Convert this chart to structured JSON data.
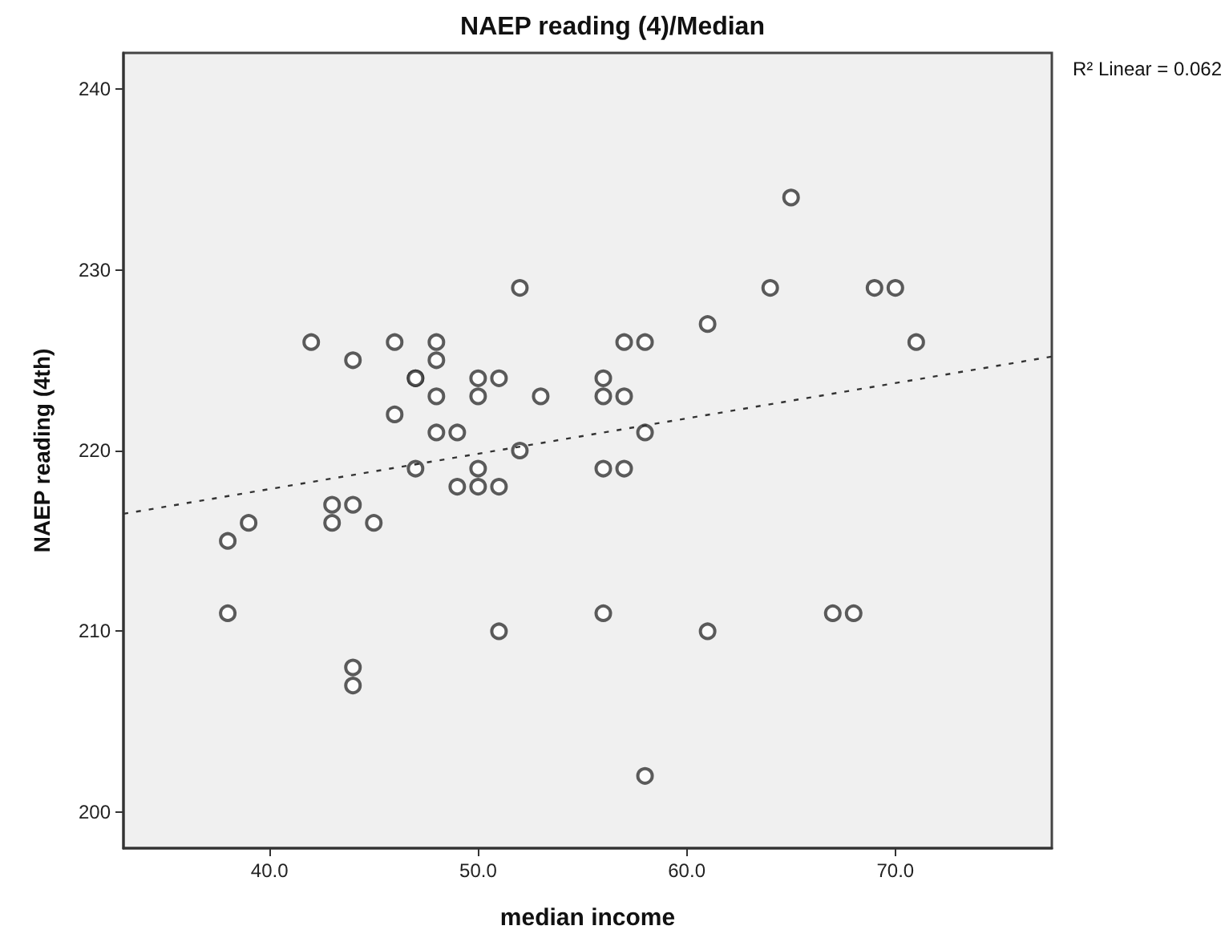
{
  "chart_data": {
    "type": "scatter",
    "title": "NAEP reading (4)/Median",
    "xlabel": "median income",
    "ylabel": "NAEP reading (4th)",
    "annotations": [
      "R² Linear = 0.062"
    ],
    "xlim": [
      33,
      77.5
    ],
    "xticks": [
      {
        "value": 40,
        "label": "40.0"
      },
      {
        "value": 50,
        "label": "50.0"
      },
      {
        "value": 60,
        "label": "60.0"
      },
      {
        "value": 70,
        "label": "70.0"
      }
    ],
    "ylim": [
      198,
      242
    ],
    "yticks": [
      200,
      210,
      220,
      230,
      240
    ],
    "marker": "circle",
    "series": [
      {
        "color": "#333333",
        "x": [
          38,
          38,
          39,
          42,
          43,
          43,
          44,
          44,
          44,
          44,
          45,
          46,
          46,
          47,
          47,
          47,
          48,
          48,
          48,
          48,
          49,
          49,
          50,
          50,
          50,
          50,
          51,
          51,
          51,
          52,
          52,
          53,
          56,
          56,
          56,
          56,
          57,
          57,
          57,
          58,
          58,
          58,
          61,
          61,
          64,
          65,
          67,
          68,
          69,
          70,
          71
        ],
        "values": [
          215,
          211,
          216,
          226,
          217,
          216,
          225,
          217,
          208,
          207,
          216,
          226,
          222,
          224,
          224,
          219,
          226,
          225,
          223,
          221,
          221,
          218,
          224,
          223,
          219,
          218,
          224,
          218,
          210,
          229,
          220,
          223,
          224,
          223,
          219,
          211,
          226,
          223,
          219,
          226,
          221,
          202,
          227,
          210,
          229,
          234,
          211,
          211,
          229,
          229,
          226
        ]
      },
      {
        "type": "line",
        "color": "#333333",
        "line_style": "dashed",
        "marker": "none",
        "x": [
          33,
          77.5
        ],
        "values": [
          216.5,
          225.2
        ]
      }
    ]
  }
}
